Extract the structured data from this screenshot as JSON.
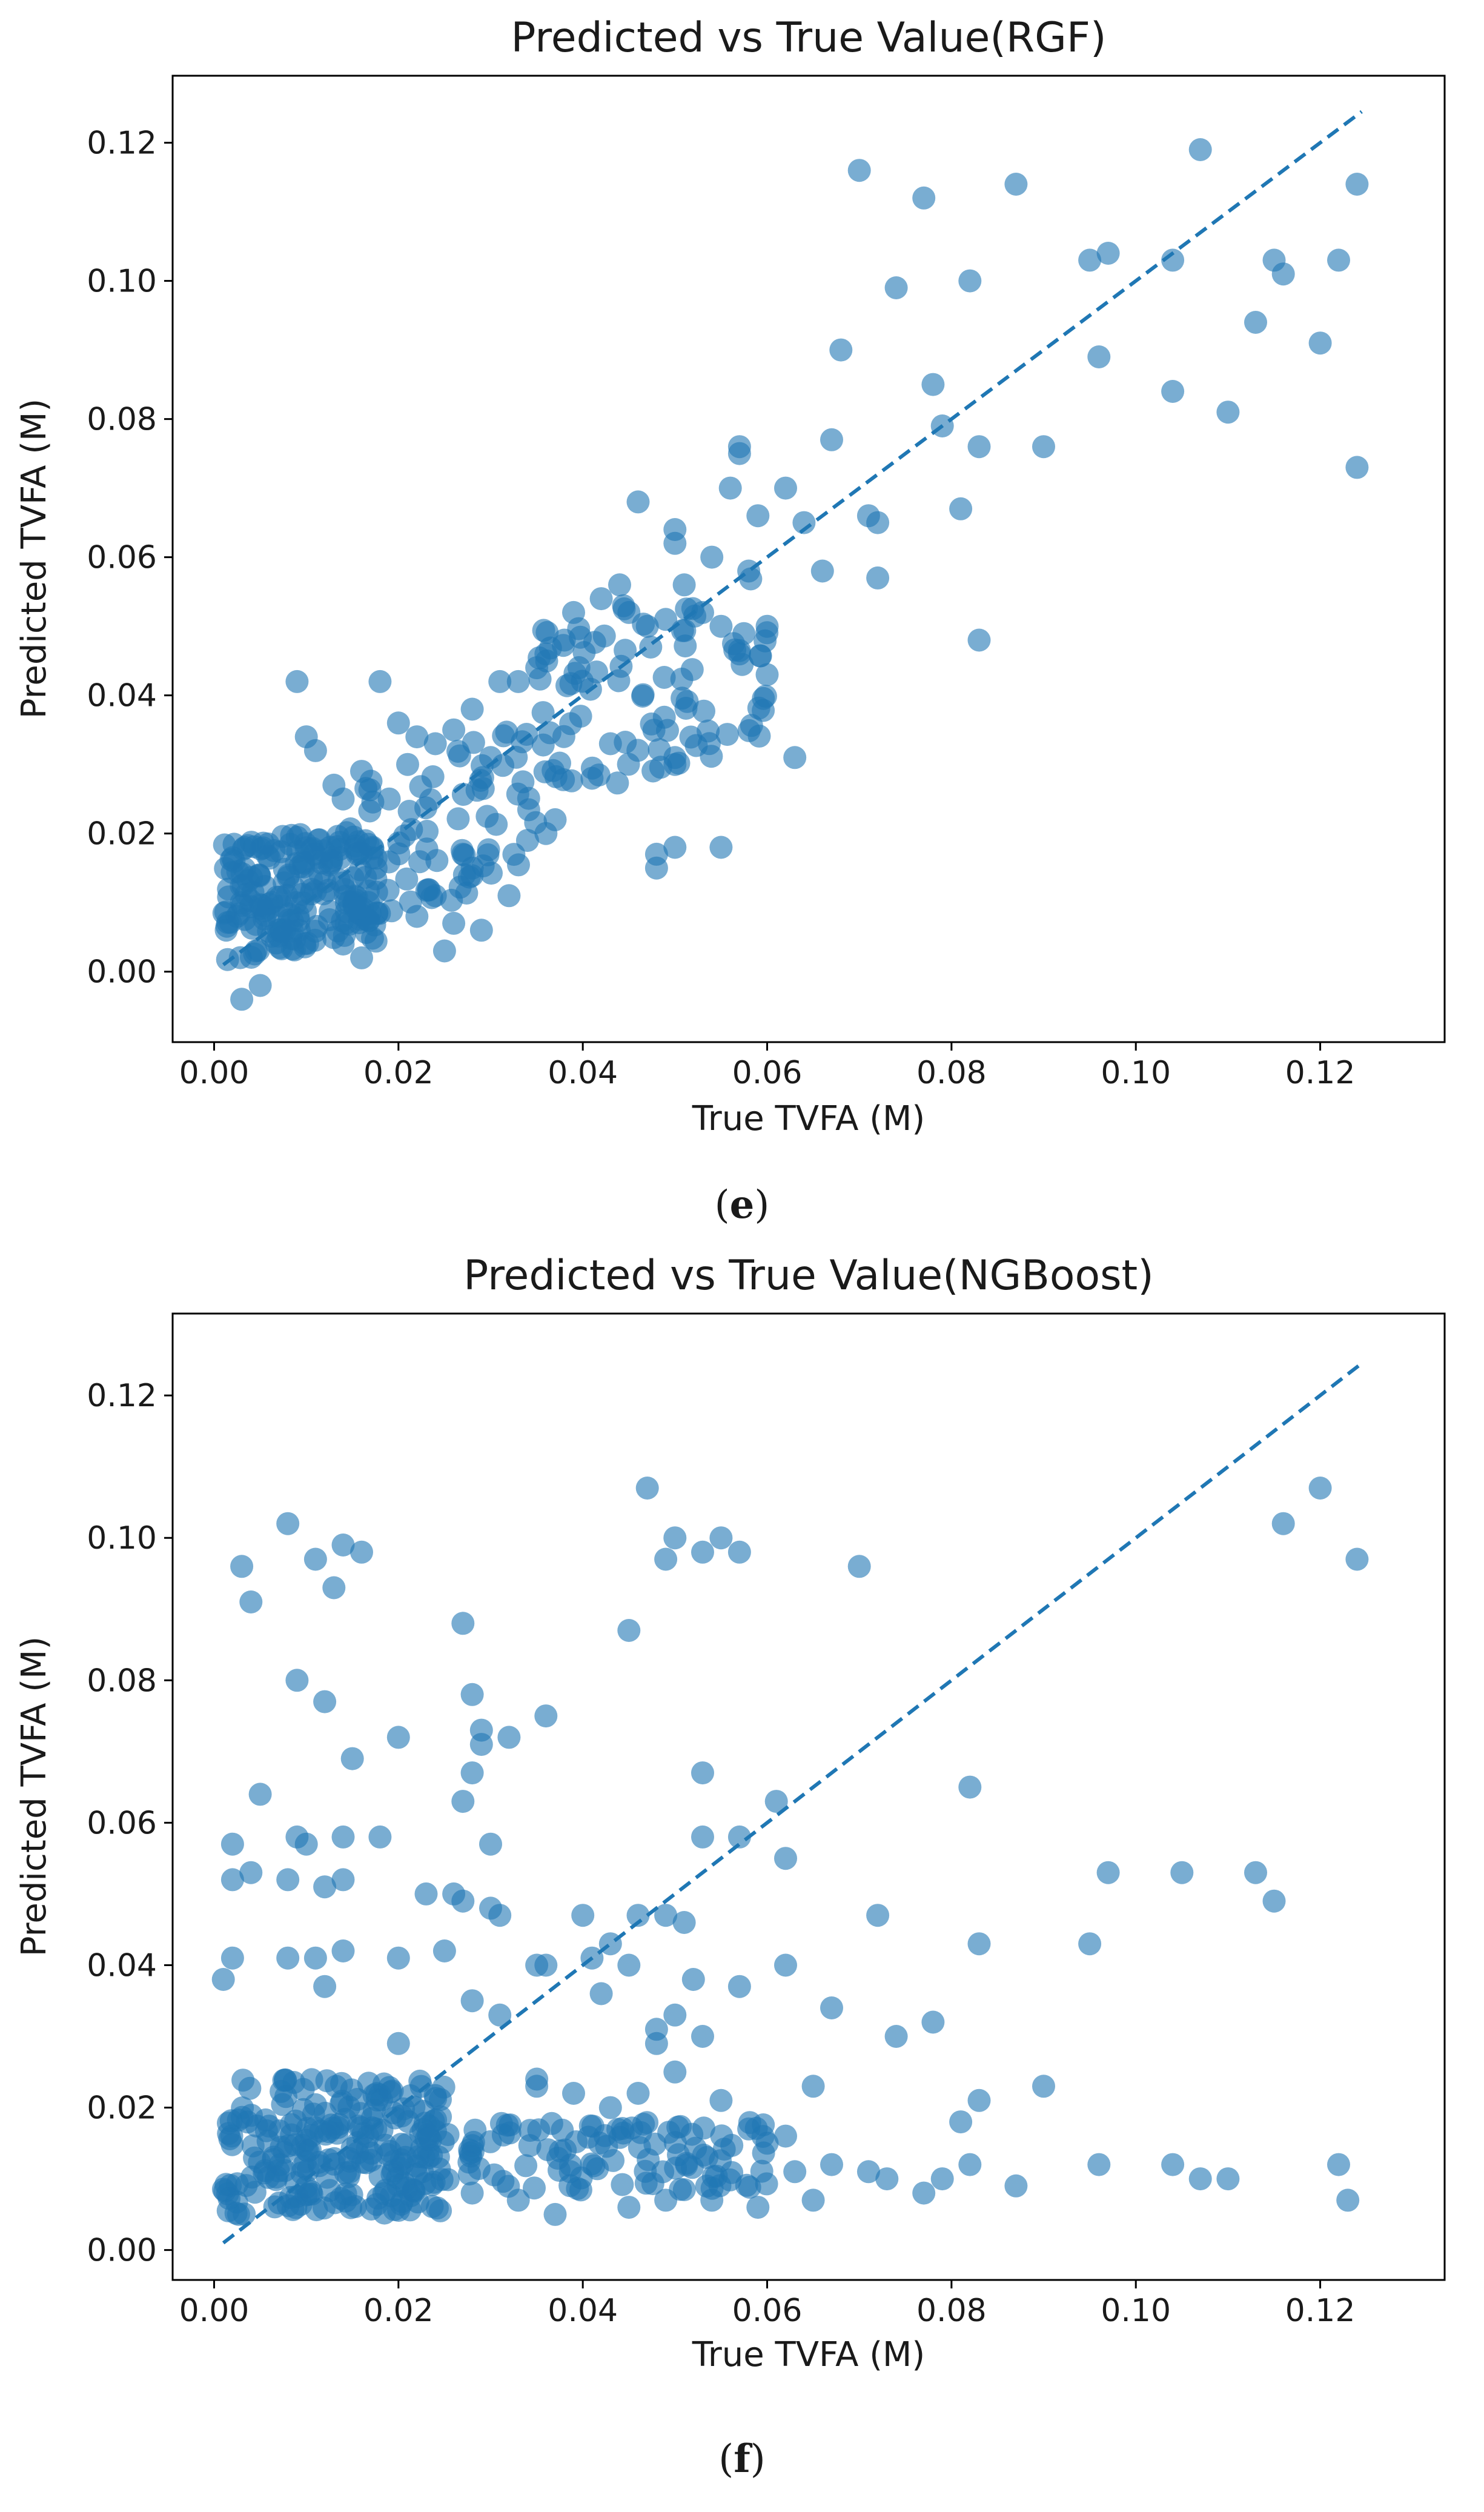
{
  "chart_data": [
    {
      "type": "scatter",
      "panel": "(e)",
      "panel_letter": "e",
      "title": "Predicted vs True Value(RGF)",
      "xlabel": "True TVFA (M)",
      "ylabel": "Predicted TVFA (M)",
      "xlim": [
        -0.0045,
        0.1335
      ],
      "ylim": [
        -0.0102,
        0.1297
      ],
      "xticks": [
        "0.00",
        "0.02",
        "0.04",
        "0.06",
        "0.08",
        "0.10",
        "0.12"
      ],
      "yticks": [
        "0.00",
        "0.02",
        "0.04",
        "0.06",
        "0.08",
        "0.10",
        "0.12"
      ],
      "reference_line": {
        "x": [
          0.001,
          0.1245
        ],
        "y": [
          0.001,
          0.1245
        ],
        "style": "dashed"
      },
      "point_color": "#1f77b4",
      "grid": false,
      "seed": 7,
      "points": [
        [
          0.07,
          0.116
        ],
        [
          0.077,
          0.112
        ],
        [
          0.087,
          0.114
        ],
        [
          0.107,
          0.119
        ],
        [
          0.124,
          0.114
        ],
        [
          0.074,
          0.099
        ],
        [
          0.082,
          0.1
        ],
        [
          0.095,
          0.103
        ],
        [
          0.097,
          0.104
        ],
        [
          0.104,
          0.103
        ],
        [
          0.115,
          0.103
        ],
        [
          0.116,
          0.101
        ],
        [
          0.122,
          0.103
        ],
        [
          0.068,
          0.09
        ],
        [
          0.096,
          0.089
        ],
        [
          0.113,
          0.094
        ],
        [
          0.12,
          0.091
        ],
        [
          0.078,
          0.085
        ],
        [
          0.079,
          0.079
        ],
        [
          0.067,
          0.077
        ],
        [
          0.083,
          0.076
        ],
        [
          0.09,
          0.076
        ],
        [
          0.104,
          0.084
        ],
        [
          0.11,
          0.081
        ],
        [
          0.124,
          0.073
        ],
        [
          0.057,
          0.076
        ],
        [
          0.057,
          0.075
        ],
        [
          0.056,
          0.07
        ],
        [
          0.062,
          0.07
        ],
        [
          0.059,
          0.066
        ],
        [
          0.064,
          0.065
        ],
        [
          0.071,
          0.066
        ],
        [
          0.072,
          0.065
        ],
        [
          0.081,
          0.067
        ],
        [
          0.066,
          0.058
        ],
        [
          0.072,
          0.057
        ],
        [
          0.083,
          0.048
        ],
        [
          0.063,
          0.031
        ],
        [
          0.055,
          0.018
        ],
        [
          0.048,
          0.015
        ],
        [
          0.048,
          0.017
        ],
        [
          0.05,
          0.018
        ],
        [
          0.046,
          0.068
        ],
        [
          0.05,
          0.064
        ],
        [
          0.05,
          0.062
        ],
        [
          0.042,
          0.054
        ],
        [
          0.044,
          0.056
        ],
        [
          0.051,
          0.056
        ],
        [
          0.054,
          0.06
        ],
        [
          0.058,
          0.058
        ],
        [
          0.039,
          0.052
        ],
        [
          0.038,
          0.048
        ],
        [
          0.036,
          0.046
        ],
        [
          0.035,
          0.044
        ],
        [
          0.033,
          0.042
        ],
        [
          0.031,
          0.042
        ],
        [
          0.045,
          0.052
        ],
        [
          0.047,
          0.05
        ],
        [
          0.049,
          0.051
        ],
        [
          0.053,
          0.052
        ],
        [
          0.055,
          0.05
        ],
        [
          0.06,
          0.05
        ],
        [
          0.057,
          0.046
        ],
        [
          0.06,
          0.043
        ],
        [
          0.05,
          0.031
        ],
        [
          0.05,
          0.03
        ],
        [
          0.043,
          0.033
        ],
        [
          0.041,
          0.028
        ],
        [
          0.037,
          0.022
        ],
        [
          0.036,
          0.02
        ],
        [
          0.034,
          0.019
        ],
        [
          0.032,
          0.011
        ],
        [
          0.028,
          0.015
        ],
        [
          0.027,
          0.017
        ],
        [
          0.024,
          0.011
        ],
        [
          0.022,
          0.008
        ],
        [
          0.029,
          0.006
        ],
        [
          0.025,
          0.003
        ],
        [
          0.026,
          0.007
        ],
        [
          0.018,
          0.042
        ],
        [
          0.02,
          0.036
        ],
        [
          0.009,
          0.042
        ],
        [
          0.011,
          0.032
        ],
        [
          0.013,
          0.027
        ],
        [
          0.014,
          0.025
        ],
        [
          0.019,
          0.025
        ],
        [
          0.021,
          0.03
        ],
        [
          0.024,
          0.033
        ],
        [
          0.022,
          0.034
        ],
        [
          0.03,
          0.031
        ],
        [
          0.028,
          0.038
        ],
        [
          0.026,
          0.035
        ],
        [
          0.016,
          0.029
        ],
        [
          0.01,
          0.034
        ],
        [
          0.003,
          -0.004
        ],
        [
          0.005,
          -0.002
        ],
        [
          0.016,
          0.002
        ],
        [
          0.014,
          0.004
        ]
      ],
      "clusters": [
        {
          "n": 200,
          "x": [
            0.001,
            0.018
          ],
          "y": [
            0.003,
            0.02
          ],
          "slope": 0.35
        },
        {
          "n": 70,
          "x": [
            0.015,
            0.035
          ],
          "y": [
            0.01,
            0.032
          ],
          "slope": 0.8
        },
        {
          "n": 90,
          "x": [
            0.035,
            0.06
          ],
          "y": [
            0.028,
            0.055
          ],
          "slope": 0.8
        }
      ]
    },
    {
      "type": "scatter",
      "panel": "(f)",
      "panel_letter": "f",
      "title": "Predicted vs True Value(NGBoost)",
      "xlabel": "True TVFA (M)",
      "ylabel": "Predicted TVFA (M)",
      "xlim": [
        -0.0045,
        0.1335
      ],
      "ylim": [
        -0.0042,
        0.1315
      ],
      "xticks": [
        "0.00",
        "0.02",
        "0.04",
        "0.06",
        "0.08",
        "0.10",
        "0.12"
      ],
      "yticks": [
        "0.00",
        "0.02",
        "0.04",
        "0.06",
        "0.08",
        "0.10",
        "0.12"
      ],
      "reference_line": {
        "x": [
          0.001,
          0.1245
        ],
        "y": [
          0.001,
          0.1245
        ],
        "style": "dashed"
      },
      "point_color": "#1f77b4",
      "grid": false,
      "seed": 11,
      "points": [
        [
          0.047,
          0.107
        ],
        [
          0.12,
          0.107
        ],
        [
          0.008,
          0.102
        ],
        [
          0.116,
          0.102
        ],
        [
          0.05,
          0.1
        ],
        [
          0.055,
          0.1
        ],
        [
          0.003,
          0.096
        ],
        [
          0.011,
          0.097
        ],
        [
          0.014,
          0.099
        ],
        [
          0.016,
          0.098
        ],
        [
          0.049,
          0.097
        ],
        [
          0.053,
          0.098
        ],
        [
          0.057,
          0.098
        ],
        [
          0.07,
          0.096
        ],
        [
          0.124,
          0.097
        ],
        [
          0.013,
          0.093
        ],
        [
          0.004,
          0.091
        ],
        [
          0.045,
          0.087
        ],
        [
          0.027,
          0.088
        ],
        [
          0.009,
          0.08
        ],
        [
          0.012,
          0.077
        ],
        [
          0.02,
          0.072
        ],
        [
          0.028,
          0.078
        ],
        [
          0.036,
          0.075
        ],
        [
          0.029,
          0.073
        ],
        [
          0.029,
          0.071
        ],
        [
          0.032,
          0.072
        ],
        [
          0.015,
          0.069
        ],
        [
          0.028,
          0.067
        ],
        [
          0.053,
          0.067
        ],
        [
          0.082,
          0.065
        ],
        [
          0.005,
          0.064
        ],
        [
          0.027,
          0.063
        ],
        [
          0.061,
          0.063
        ],
        [
          0.009,
          0.058
        ],
        [
          0.01,
          0.057
        ],
        [
          0.014,
          0.058
        ],
        [
          0.018,
          0.058
        ],
        [
          0.002,
          0.057
        ],
        [
          0.03,
          0.057
        ],
        [
          0.053,
          0.058
        ],
        [
          0.057,
          0.058
        ],
        [
          0.062,
          0.055
        ],
        [
          0.097,
          0.053
        ],
        [
          0.105,
          0.053
        ],
        [
          0.113,
          0.053
        ],
        [
          0.115,
          0.049
        ],
        [
          0.002,
          0.052
        ],
        [
          0.004,
          0.053
        ],
        [
          0.008,
          0.052
        ],
        [
          0.012,
          0.051
        ],
        [
          0.014,
          0.052
        ],
        [
          0.023,
          0.05
        ],
        [
          0.026,
          0.05
        ],
        [
          0.027,
          0.049
        ],
        [
          0.03,
          0.048
        ],
        [
          0.031,
          0.047
        ],
        [
          0.04,
          0.047
        ],
        [
          0.046,
          0.047
        ],
        [
          0.049,
          0.047
        ],
        [
          0.051,
          0.046
        ],
        [
          0.072,
          0.047
        ],
        [
          0.002,
          0.041
        ],
        [
          0.008,
          0.041
        ],
        [
          0.011,
          0.041
        ],
        [
          0.014,
          0.042
        ],
        [
          0.02,
          0.041
        ],
        [
          0.025,
          0.042
        ],
        [
          0.035,
          0.04
        ],
        [
          0.036,
          0.04
        ],
        [
          0.041,
          0.041
        ],
        [
          0.043,
          0.043
        ],
        [
          0.045,
          0.04
        ],
        [
          0.062,
          0.04
        ],
        [
          0.083,
          0.043
        ],
        [
          0.095,
          0.043
        ],
        [
          0.001,
          0.038
        ],
        [
          0.012,
          0.037
        ],
        [
          0.028,
          0.035
        ],
        [
          0.031,
          0.033
        ],
        [
          0.042,
          0.036
        ],
        [
          0.05,
          0.033
        ],
        [
          0.052,
          0.038
        ],
        [
          0.057,
          0.037
        ],
        [
          0.067,
          0.034
        ],
        [
          0.074,
          0.03
        ],
        [
          0.078,
          0.032
        ],
        [
          0.048,
          0.031
        ],
        [
          0.053,
          0.03
        ],
        [
          0.048,
          0.029
        ],
        [
          0.02,
          0.029
        ],
        [
          0.05,
          0.025
        ],
        [
          0.065,
          0.023
        ],
        [
          0.09,
          0.023
        ],
        [
          0.083,
          0.021
        ],
        [
          0.081,
          0.018
        ],
        [
          0.035,
          0.024
        ],
        [
          0.035,
          0.023
        ],
        [
          0.039,
          0.022
        ],
        [
          0.043,
          0.02
        ],
        [
          0.046,
          0.022
        ],
        [
          0.055,
          0.021
        ],
        [
          0.058,
          0.017
        ],
        [
          0.06,
          0.015
        ],
        [
          0.062,
          0.016
        ],
        [
          0.063,
          0.011
        ],
        [
          0.067,
          0.012
        ],
        [
          0.071,
          0.011
        ],
        [
          0.073,
          0.01
        ],
        [
          0.077,
          0.008
        ],
        [
          0.079,
          0.01
        ],
        [
          0.082,
          0.012
        ],
        [
          0.087,
          0.009
        ],
        [
          0.096,
          0.012
        ],
        [
          0.104,
          0.012
        ],
        [
          0.107,
          0.01
        ],
        [
          0.11,
          0.01
        ],
        [
          0.122,
          0.012
        ],
        [
          0.123,
          0.007
        ],
        [
          0.065,
          0.007
        ],
        [
          0.059,
          0.006
        ],
        [
          0.054,
          0.007
        ],
        [
          0.049,
          0.007
        ],
        [
          0.045,
          0.006
        ],
        [
          0.037,
          0.005
        ],
        [
          0.033,
          0.007
        ],
        [
          0.028,
          0.008
        ]
      ],
      "clusters": [
        {
          "n": 230,
          "x": [
            0.001,
            0.025
          ],
          "y": [
            0.005,
            0.024
          ],
          "slope": 0.0
        },
        {
          "n": 110,
          "x": [
            0.02,
            0.06
          ],
          "y": [
            0.008,
            0.018
          ],
          "slope": 0.0
        }
      ]
    }
  ]
}
